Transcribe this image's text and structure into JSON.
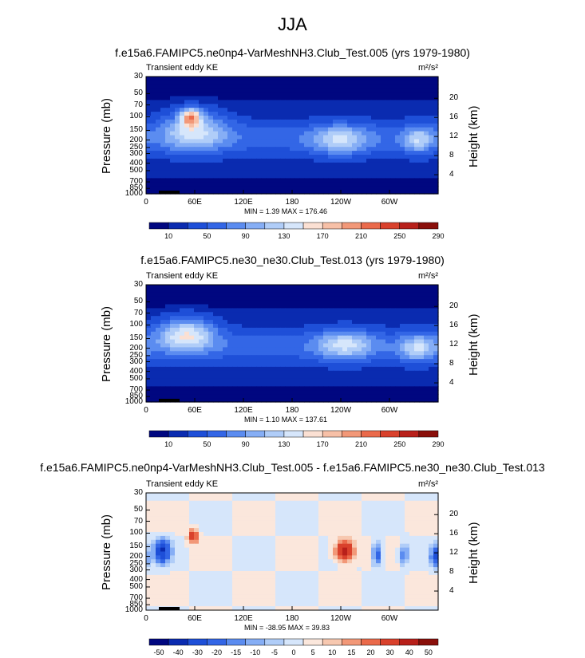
{
  "page_title": "JJA",
  "colors": {
    "div_scale": [
      "#000780",
      "#0a2bb0",
      "#1e4fd8",
      "#3366e6",
      "#5b8cf0",
      "#86aef5",
      "#b0cdf8",
      "#d6e6fb",
      "#fbe0d3",
      "#f7c0a7",
      "#f29878",
      "#ea6a4b",
      "#d9412c",
      "#b8201a",
      "#8a0f0a"
    ],
    "diff_scale": [
      "#000780",
      "#0a2bb0",
      "#1e4fd8",
      "#3366e6",
      "#5b8cf0",
      "#86aef5",
      "#b0cdf8",
      "#d6e6fb",
      "#fbe7dc",
      "#f7c8b0",
      "#f29878",
      "#ea6a4b",
      "#d9412c",
      "#b8201a",
      "#8a0f0a"
    ]
  },
  "chart_data": [
    {
      "type": "heatmap",
      "name": "panel1",
      "title": "f.e15a6.FAMIPC5.ne0np4-VarMeshNH3.Club_Test.005 (yrs 1979-1980)",
      "left_label": "Transient eddy KE",
      "units": "m²/s²",
      "ylabel": "Pressure (mb)",
      "y2label": "Height (km)",
      "pressure_ticks": [
        "30",
        "50",
        "70",
        "100",
        "150",
        "200",
        "250",
        "300",
        "400",
        "500",
        "700",
        "850",
        "1000"
      ],
      "height_ticks": [
        "20",
        "16",
        "12",
        "8",
        "4"
      ],
      "xticks": [
        "0",
        "60E",
        "120E",
        "180",
        "120W",
        "60W"
      ],
      "min": 1.39,
      "max": 176.46,
      "minmax_text": "MIN =   1.39  MAX = 176.46",
      "levels": [
        10,
        30,
        50,
        70,
        90,
        110,
        130,
        150,
        170,
        190,
        210,
        230,
        250,
        270,
        290
      ],
      "colorbar_labels": [
        "10",
        "50",
        "90",
        "130",
        "170",
        "210",
        "250",
        "290"
      ],
      "features": [
        {
          "lon": 55,
          "p": 100,
          "value": 176,
          "spread_lon": 12,
          "spread_p": 0.25
        },
        {
          "lon": 60,
          "p": 150,
          "value": 110,
          "spread_lon": 40,
          "spread_p": 0.6
        },
        {
          "lon": 240,
          "p": 200,
          "value": 95,
          "spread_lon": 35,
          "spread_p": 0.45
        },
        {
          "lon": 335,
          "p": 200,
          "value": 90,
          "spread_lon": 18,
          "spread_p": 0.4
        }
      ]
    },
    {
      "type": "heatmap",
      "name": "panel2",
      "title": "f.e15a6.FAMIPC5.ne30_ne30.Club_Test.013 (yrs 1979-1980)",
      "left_label": "Transient eddy KE",
      "units": "m²/s²",
      "ylabel": "Pressure (mb)",
      "y2label": "Height (km)",
      "pressure_ticks": [
        "30",
        "50",
        "70",
        "100",
        "150",
        "200",
        "250",
        "300",
        "400",
        "500",
        "700",
        "850",
        "1000"
      ],
      "height_ticks": [
        "20",
        "16",
        "12",
        "8",
        "4"
      ],
      "xticks": [
        "0",
        "60E",
        "120E",
        "180",
        "120W",
        "60W"
      ],
      "min": 1.1,
      "max": 137.61,
      "minmax_text": "MIN =   1.10  MAX = 137.61",
      "levels": [
        10,
        30,
        50,
        70,
        90,
        110,
        130,
        150,
        170,
        190,
        210,
        230,
        250,
        270,
        290
      ],
      "colorbar_labels": [
        "10",
        "50",
        "90",
        "130",
        "170",
        "210",
        "250",
        "290"
      ],
      "features": [
        {
          "lon": 50,
          "p": 130,
          "value": 137,
          "spread_lon": 35,
          "spread_p": 0.5
        },
        {
          "lon": 245,
          "p": 180,
          "value": 100,
          "spread_lon": 35,
          "spread_p": 0.45
        },
        {
          "lon": 335,
          "p": 200,
          "value": 95,
          "spread_lon": 22,
          "spread_p": 0.4
        }
      ]
    },
    {
      "type": "heatmap",
      "name": "panel3",
      "title": "f.e15a6.FAMIPC5.ne0np4-VarMeshNH3.Club_Test.005 - f.e15a6.FAMIPC5.ne30_ne30.Club_Test.013",
      "left_label": "Transient eddy KE",
      "units": "m²/s²",
      "ylabel": "Pressure (mb)",
      "y2label": "Height (km)",
      "pressure_ticks": [
        "30",
        "50",
        "70",
        "100",
        "150",
        "200",
        "250",
        "300",
        "400",
        "500",
        "700",
        "850",
        "1000"
      ],
      "height_ticks": [
        "20",
        "16",
        "12",
        "8",
        "4"
      ],
      "xticks": [
        "0",
        "60E",
        "120E",
        "180",
        "120W",
        "60W"
      ],
      "min": -38.95,
      "max": 39.83,
      "minmax_text": "MIN = -38.95  MAX =  39.83",
      "levels": [
        -50,
        -40,
        -30,
        -20,
        -15,
        -10,
        -5,
        0,
        5,
        10,
        15,
        20,
        30,
        40,
        50
      ],
      "colorbar_labels": [
        "-50",
        "-40",
        "-30",
        "-20",
        "-15",
        "-10",
        "-5",
        "0",
        "5",
        "10",
        "15",
        "20",
        "30",
        "40",
        "50"
      ],
      "features": [
        {
          "lon": 20,
          "p": 170,
          "value": -38,
          "spread_lon": 10,
          "spread_p": 0.35
        },
        {
          "lon": 58,
          "p": 110,
          "value": 30,
          "spread_lon": 6,
          "spread_p": 0.2
        },
        {
          "lon": 245,
          "p": 170,
          "value": 39,
          "spread_lon": 12,
          "spread_p": 0.3
        },
        {
          "lon": 285,
          "p": 190,
          "value": -28,
          "spread_lon": 6,
          "spread_p": 0.35
        },
        {
          "lon": 318,
          "p": 190,
          "value": -20,
          "spread_lon": 6,
          "spread_p": 0.3
        },
        {
          "lon": 357,
          "p": 200,
          "value": -30,
          "spread_lon": 6,
          "spread_p": 0.3
        }
      ]
    }
  ]
}
